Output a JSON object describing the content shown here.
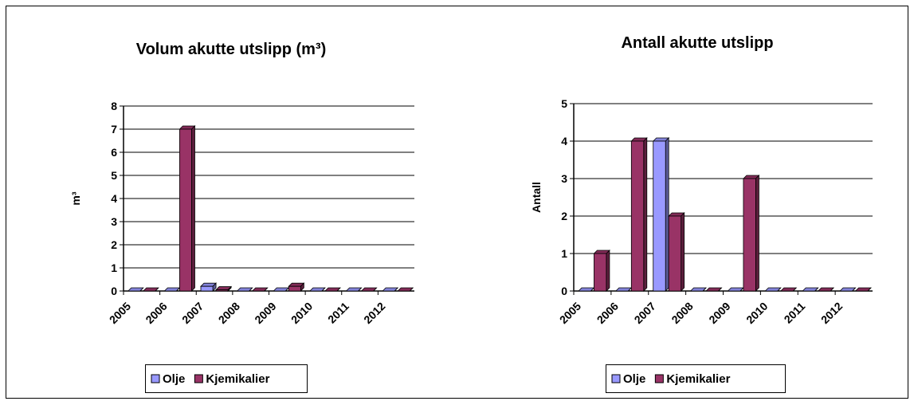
{
  "chart_data": [
    {
      "type": "bar",
      "title": "Volum akutte utslipp (m³)",
      "y_label": "m³",
      "categories": [
        "2005",
        "2006",
        "2007",
        "2008",
        "2009",
        "2010",
        "2011",
        "2012"
      ],
      "series": [
        {
          "name": "Olje",
          "color": "#9999ff",
          "values": [
            0,
            0,
            0.2,
            0,
            0,
            0,
            0,
            0
          ]
        },
        {
          "name": "Kjemikalier",
          "color": "#993366",
          "values": [
            0,
            7,
            0.05,
            0,
            0.2,
            0,
            0,
            0
          ]
        }
      ],
      "ylim": [
        0,
        8
      ],
      "yticks": [
        0,
        1,
        2,
        3,
        4,
        5,
        6,
        7,
        8
      ],
      "grid": true
    },
    {
      "type": "bar",
      "title": "Antall akutte utslipp",
      "y_label": "Antall",
      "categories": [
        "2005",
        "2006",
        "2007",
        "2008",
        "2009",
        "2010",
        "2011",
        "2012"
      ],
      "series": [
        {
          "name": "Olje",
          "color": "#9999ff",
          "values": [
            0,
            0,
            4,
            0,
            0,
            0,
            0,
            0
          ]
        },
        {
          "name": "Kjemikalier",
          "color": "#993366",
          "values": [
            1,
            4,
            2,
            0,
            3,
            0,
            0,
            0
          ]
        }
      ],
      "ylim": [
        0,
        5
      ],
      "yticks": [
        0,
        1,
        2,
        3,
        4,
        5
      ],
      "grid": true
    }
  ]
}
